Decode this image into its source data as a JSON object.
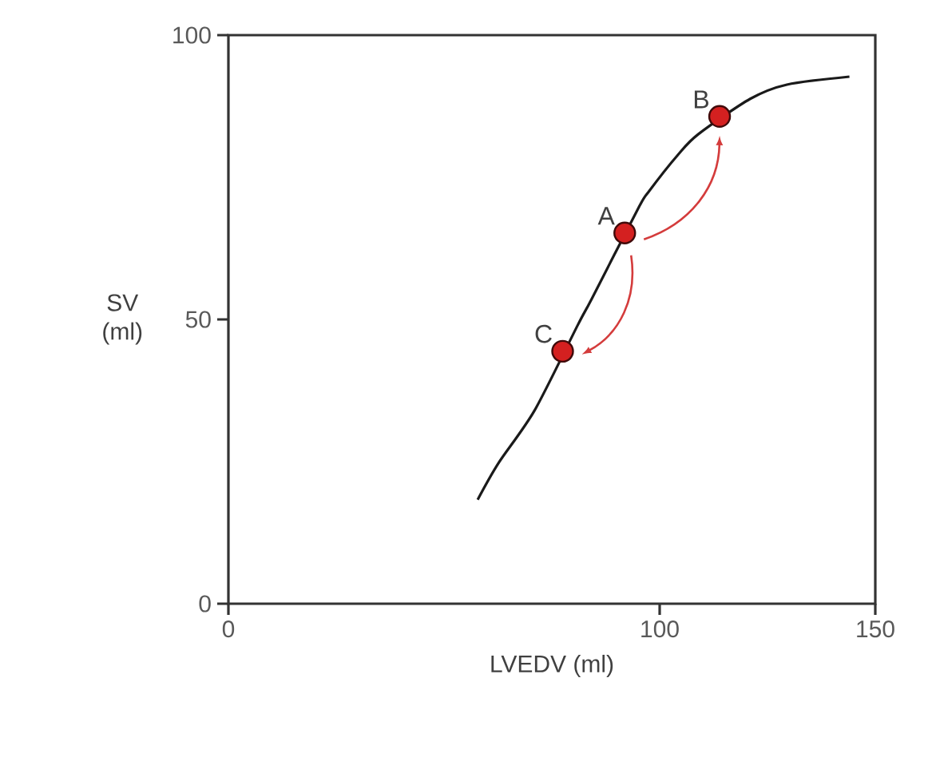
{
  "chart_data": {
    "type": "line",
    "xlabel": "LVEDV (ml)",
    "ylabel": "SV (ml)",
    "xlim": [
      0,
      150
    ],
    "xticks": [
      0,
      100,
      150
    ],
    "ylim": [
      0,
      100
    ],
    "yticks": [
      0,
      50,
      100
    ],
    "series": [
      {
        "color": "#1a1a1a",
        "x": [
          57.8,
          62.6,
          71,
          81,
          84.3,
          95,
          97.5,
          104.3,
          109,
          121,
          129.5,
          144
        ],
        "values": [
          18.3,
          24.7,
          34,
          49,
          53.7,
          69.5,
          72.5,
          79,
          82.6,
          88.8,
          91.3,
          92.7
        ]
      },
      {
        "type": "scatter",
        "color": "#d42020",
        "x": [
          91.9,
          113.9,
          77.5
        ],
        "values": [
          65.2,
          85.7,
          44.4
        ]
      }
    ],
    "annotations": [
      {
        "text": "A",
        "x": 91.9,
        "y": 65.2
      },
      {
        "text": "B",
        "x": 113.9,
        "y": 85.7
      },
      {
        "text": "C",
        "x": 77.5,
        "y": 44.4
      }
    ],
    "grid": false
  }
}
